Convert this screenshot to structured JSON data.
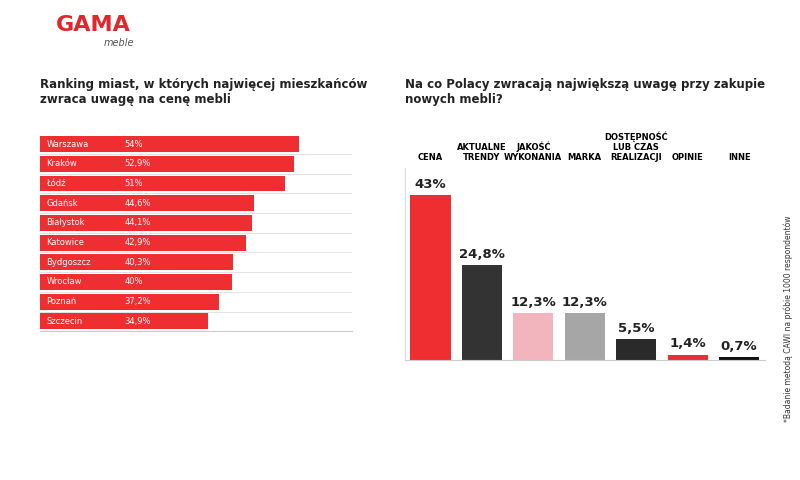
{
  "logo": {
    "name": "GAMA",
    "subtitle": "meble"
  },
  "footnote": "*Badanie metodą CAWI na próbie 1000 respondentów",
  "chart_data": [
    {
      "type": "bar",
      "orientation": "horizontal",
      "title": "Ranking miast, w których najwięcej mieszkańców zwraca uwagę na cenę mebli",
      "categories": [
        "Warszawa",
        "Kraków",
        "Łódź",
        "Gdańsk",
        "Białystok",
        "Katowice",
        "Bydgoszcz",
        "Wrocław",
        "Poznań",
        "Szczecin"
      ],
      "values": [
        54,
        52.9,
        51,
        44.6,
        44.1,
        42.9,
        40.3,
        40,
        37.2,
        34.9
      ],
      "value_labels": [
        "54%",
        "52,9%",
        "51%",
        "44,6%",
        "44,1%",
        "42,9%",
        "40,3%",
        "40%",
        "37,2%",
        "34,9%"
      ],
      "color": "#ee2e31",
      "xlim": [
        0,
        65
      ],
      "data_labels": true,
      "tick_labels": false,
      "grid": false
    },
    {
      "type": "bar",
      "title": "Na co Polacy zwracają największą uwagę przy zakupie nowych mebli?",
      "categories": [
        "CENA",
        "AKTUALNE TRENDY",
        "JAKOŚĆ WYKONANIA",
        "MARKA",
        "DOSTĘPNOŚĆ LUB CZAS REALIZACJI",
        "OPINIE",
        "INNE"
      ],
      "values": [
        43,
        24.8,
        12.3,
        12.3,
        5.5,
        1.4,
        0.7
      ],
      "value_labels": [
        "43%",
        "24,8%",
        "12,3%",
        "12,3%",
        "5,5%",
        "1,4%",
        "0,7%"
      ],
      "colors": [
        "#ee2e31",
        "#333333",
        "#f2b5bd",
        "#a6a6a6",
        "#2a2a2a",
        "#ee2e31",
        "#111111"
      ],
      "ylim": [
        0,
        50
      ],
      "data_labels": true,
      "tick_labels": "x",
      "grid": false
    }
  ]
}
